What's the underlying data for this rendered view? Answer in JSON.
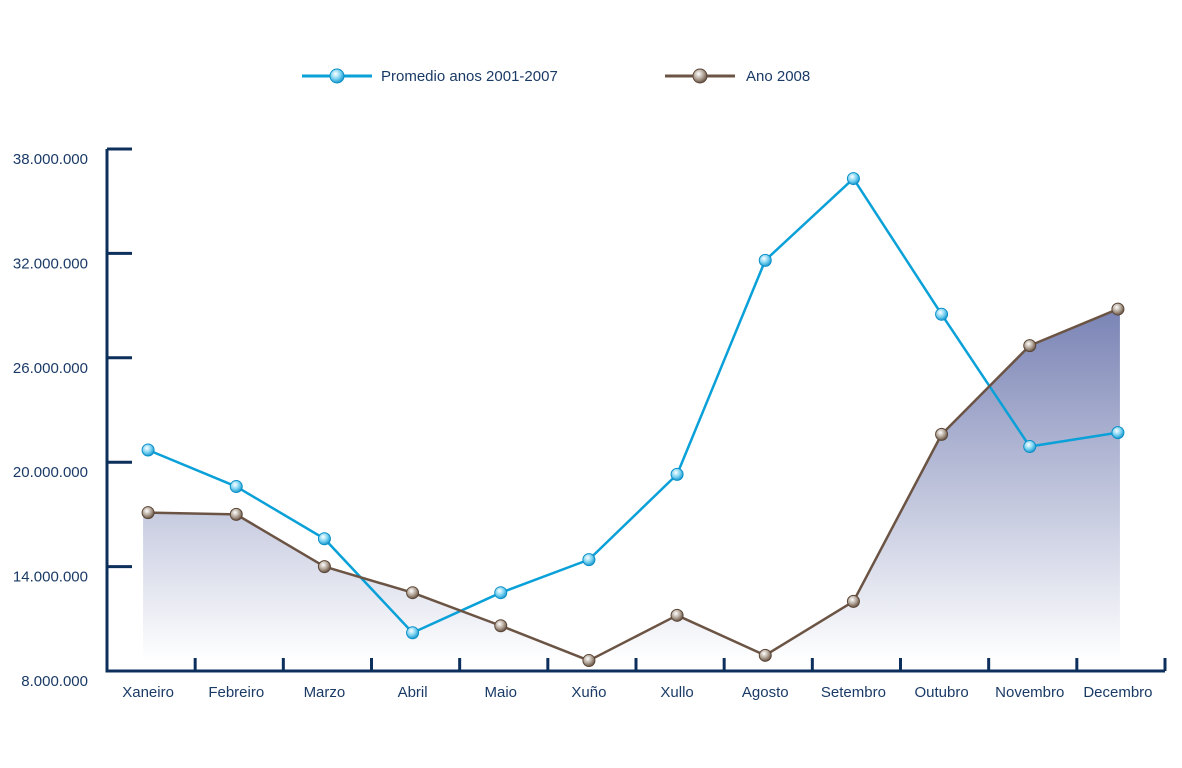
{
  "chart_data": {
    "type": "line",
    "title": "",
    "xlabel": "",
    "ylabel": "",
    "categories": [
      "Xaneiro",
      "Febreiro",
      "Marzo",
      "Abril",
      "Maio",
      "Xuño",
      "Xullo",
      "Agosto",
      "Setembro",
      "Outubro",
      "Novembro",
      "Decembro"
    ],
    "ylim": [
      8000000,
      38000000
    ],
    "yticks": [
      8000000,
      14000000,
      20000000,
      26000000,
      32000000,
      38000000
    ],
    "ytick_labels": [
      "8.000.000",
      "14.000.000",
      "20.000.000",
      "26.000.000",
      "32.000.000",
      "38.000.000"
    ],
    "grid": false,
    "legend_position": "top-center",
    "series": [
      {
        "name": "Promedio anos 2001-2007",
        "color": "#0aa0d8",
        "filled": false,
        "values": [
          20700000,
          18600000,
          15600000,
          10200000,
          12500000,
          14400000,
          19300000,
          31600000,
          36300000,
          28500000,
          20900000,
          21700000
        ]
      },
      {
        "name": "Ano 2008",
        "color": "#6b5444",
        "filled": true,
        "fill_color": "#7a84b5",
        "values": [
          17100000,
          17000000,
          14000000,
          12500000,
          10600000,
          8600000,
          11200000,
          8900000,
          12000000,
          21600000,
          26700000,
          28800000
        ]
      }
    ]
  }
}
